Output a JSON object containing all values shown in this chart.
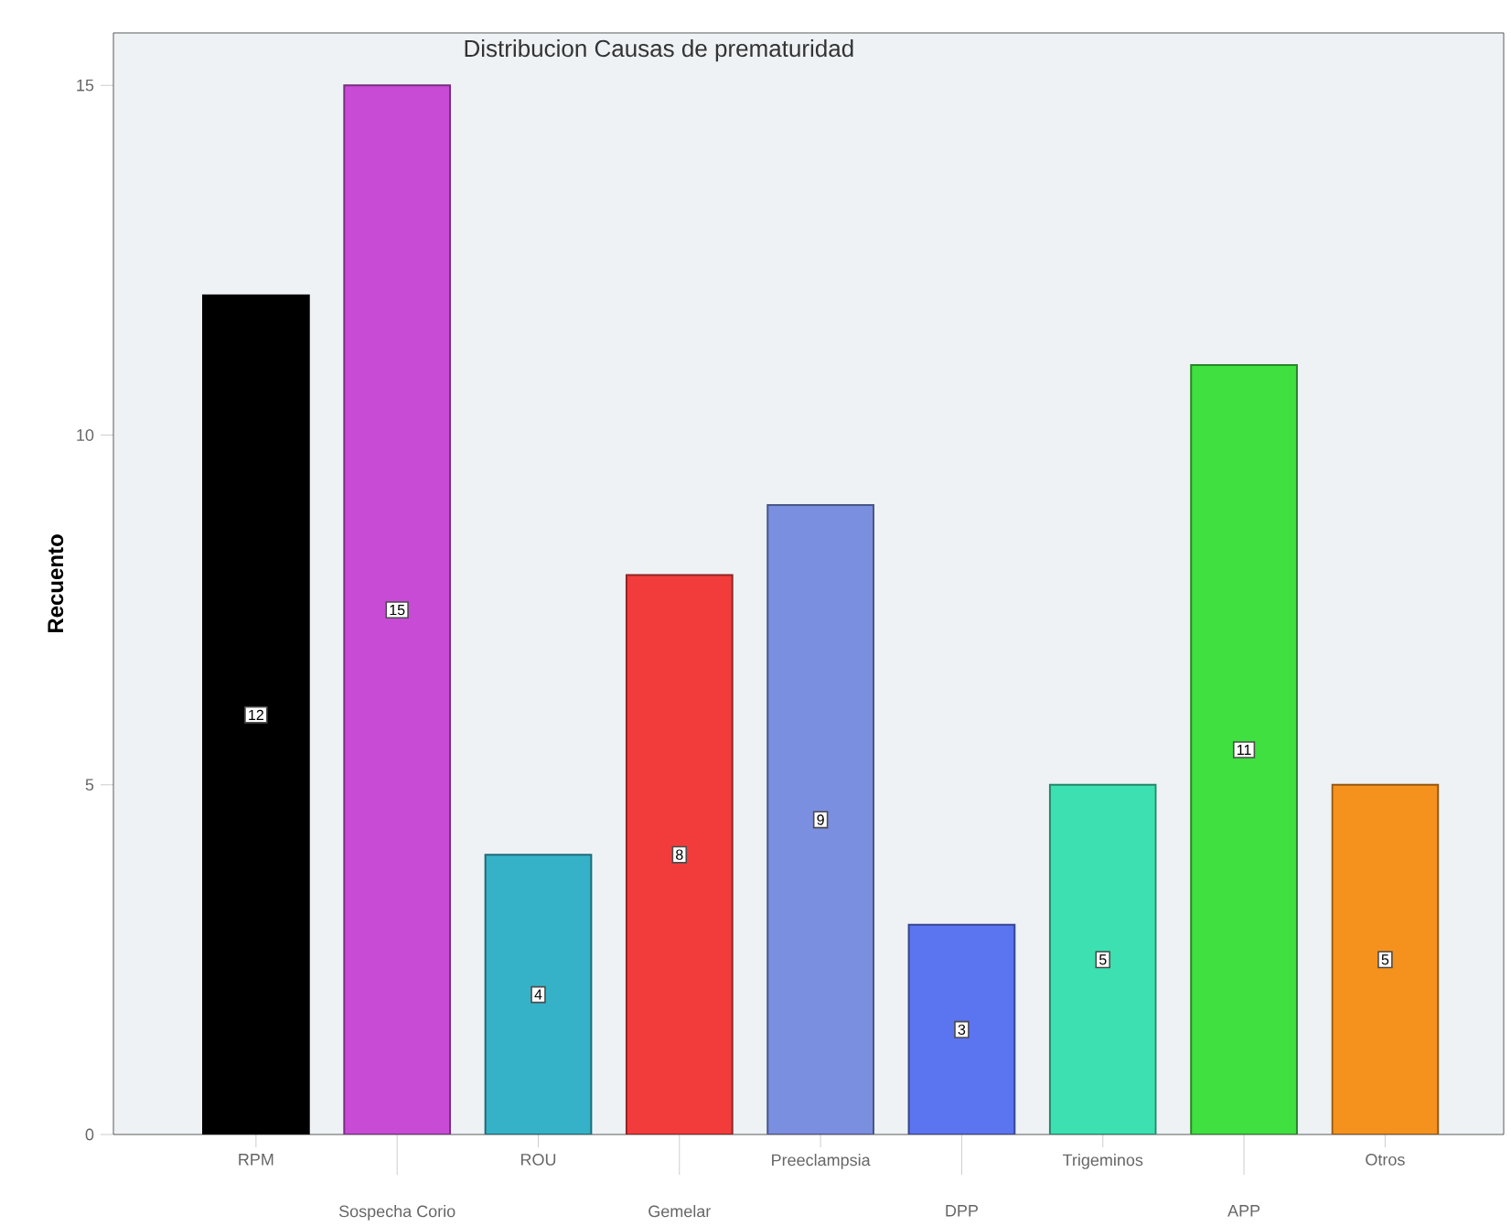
{
  "chart_data": {
    "type": "bar",
    "title": "Distribucion Causas de prematuridad",
    "ylabel": "Recuento",
    "categories": [
      "RPM",
      "Sospecha Corio",
      "ROU",
      "Gemelar",
      "Preeclampsia",
      "DPP",
      "Trigeminos",
      "APP",
      "Otros"
    ],
    "values": [
      12,
      15,
      4,
      8,
      9,
      3,
      5,
      11,
      5
    ],
    "colors": [
      "#000000",
      "#c84bd6",
      "#35b2c8",
      "#f23c3c",
      "#7b8fe0",
      "#5b74f0",
      "#3de0b0",
      "#3fe03f",
      "#f5921e"
    ],
    "ylim": [
      0,
      15.75
    ],
    "yticks": [
      0,
      5,
      10,
      15
    ],
    "data_labels": true
  }
}
